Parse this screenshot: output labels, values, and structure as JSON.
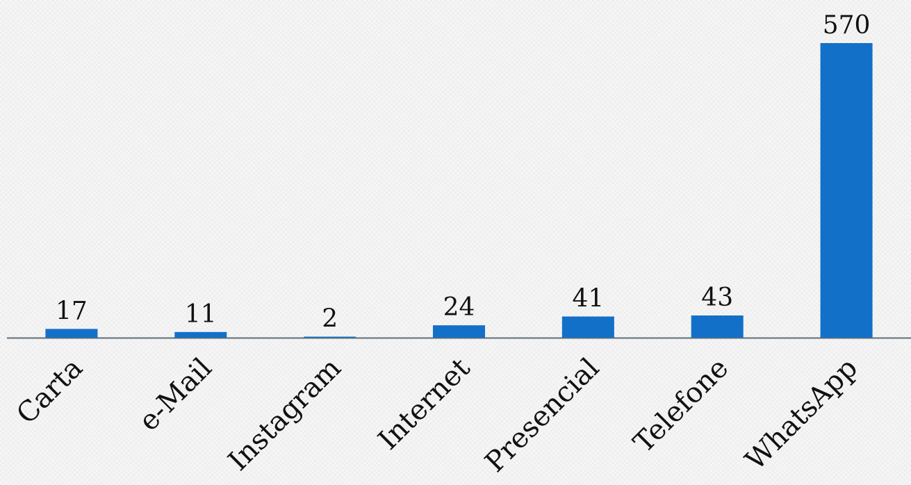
{
  "chart_data": {
    "type": "bar",
    "categories": [
      "Carta",
      "e-Mail",
      "Instagram",
      "Internet",
      "Presencial",
      "Telefone",
      "WhatsApp"
    ],
    "values": [
      17,
      11,
      2,
      24,
      41,
      43,
      570
    ],
    "data_labels": [
      "17",
      "11",
      "2",
      "24",
      "41",
      "43",
      "570"
    ],
    "title": "",
    "xlabel": "",
    "ylabel": "",
    "ylim": [
      0,
      570
    ],
    "grid": false,
    "legend": "none",
    "bar_color": "#1370c8",
    "axis_color": "#5f6d78"
  }
}
